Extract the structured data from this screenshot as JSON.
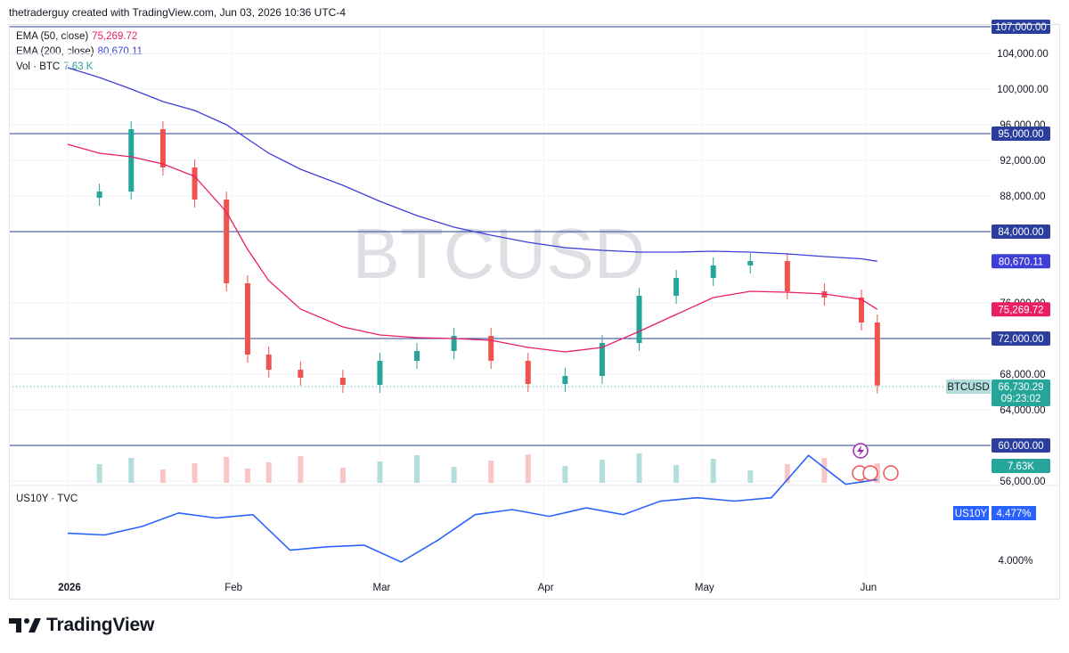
{
  "header": {
    "attribution": "thetraderguy created with TradingView.com, Jun 03, 2026 10:36 UTC-4"
  },
  "legend": {
    "ema50": {
      "label": "EMA (50, close)",
      "value": "75,269.72",
      "color": "#e91e63"
    },
    "ema200": {
      "label": "EMA (200, close)",
      "value": "80,670.11",
      "color": "#3f3fd8"
    },
    "volume": {
      "label": "Vol · BTC",
      "value": "7.63 K",
      "color": "#26a69a"
    }
  },
  "watermark": "BTCUSD",
  "colors": {
    "up": "#26a69a",
    "down": "#ef5350",
    "up_vol": "#b2dfdb",
    "down_vol": "#f7c6c5",
    "level": "#2a3f9d",
    "us10y": "#2962ff"
  },
  "price_axis": {
    "ticks": [
      "104,000.00",
      "100,000.00",
      "96,000.00",
      "92,000.00",
      "88,000.00",
      "76,000.00",
      "68,000.00",
      "64,000.00",
      "56,000.00"
    ],
    "levels": [
      "107,000.00",
      "95,000.00",
      "84,000.00",
      "72,000.00",
      "60,000.00"
    ],
    "ema200_tag": "80,670.11",
    "ema50_tag": "75,269.72",
    "symbol_tag": "BTCUSD",
    "last_price": "66,730.29",
    "countdown": "09:23:02",
    "volume_tag": "7.63K"
  },
  "time_axis": [
    "2026",
    "Feb",
    "Mar",
    "Apr",
    "May",
    "Jun"
  ],
  "lower_pane": {
    "legend": "US10Y · TVC",
    "tag_symbol": "US10Y",
    "tag_value": "4.477%",
    "tick": "4.000%"
  },
  "brand": {
    "name": "TradingView"
  },
  "chart_data": [
    {
      "type": "candlestick",
      "title": "BTCUSD",
      "x": [
        "2026-01-01",
        "2026-01-07",
        "2026-01-13",
        "2026-01-19",
        "2026-01-25",
        "2026-01-31",
        "2026-02-04",
        "2026-02-08",
        "2026-02-14",
        "2026-02-22",
        "2026-03-01",
        "2026-03-08",
        "2026-03-15",
        "2026-03-22",
        "2026-03-29",
        "2026-04-05",
        "2026-04-12",
        "2026-04-19",
        "2026-04-26",
        "2026-05-03",
        "2026-05-10",
        "2026-05-17",
        "2026-05-24",
        "2026-05-31",
        "2026-06-03"
      ],
      "close": [
        87800,
        88500,
        95500,
        91200,
        87600,
        78200,
        70200,
        68500,
        67600,
        66800,
        69500,
        70600,
        72300,
        69500,
        66900,
        67800,
        71500,
        76800,
        78800,
        80200,
        80700,
        77300,
        76600,
        73800,
        66730
      ],
      "series": [
        {
          "name": "EMA (50, close)",
          "values": [
            93800,
            92800,
            92400,
            91600,
            90200,
            86200,
            82000,
            78500,
            75300,
            73300,
            72400,
            72100,
            72000,
            71800,
            71000,
            70500,
            71000,
            72800,
            74700,
            76600,
            77300,
            77200,
            77000,
            76400,
            75270
          ]
        },
        {
          "name": "EMA (200, close)",
          "values": [
            102400,
            101300,
            100000,
            98600,
            97600,
            96000,
            94400,
            92800,
            91000,
            89200,
            87400,
            85800,
            84500,
            83600,
            82800,
            82200,
            81900,
            81700,
            81700,
            81800,
            81700,
            81500,
            81200,
            80950,
            80670
          ]
        }
      ],
      "ylim": [
        56000,
        107000
      ],
      "horizontal_levels": [
        107000,
        95000,
        84000,
        72000,
        60000
      ],
      "last_price": 66730.29,
      "volume_last": "7.63K"
    },
    {
      "type": "line",
      "title": "US10Y · TVC",
      "x": [
        "2026-01-01",
        "2026-01-08",
        "2026-01-15",
        "2026-01-22",
        "2026-01-29",
        "2026-02-05",
        "2026-02-12",
        "2026-02-19",
        "2026-02-26",
        "2026-03-05",
        "2026-03-12",
        "2026-03-19",
        "2026-03-26",
        "2026-04-02",
        "2026-04-09",
        "2026-04-16",
        "2026-04-23",
        "2026-04-30",
        "2026-05-07",
        "2026-05-14",
        "2026-05-21",
        "2026-05-28",
        "2026-06-03"
      ],
      "values": [
        4.16,
        4.15,
        4.2,
        4.28,
        4.25,
        4.27,
        4.06,
        4.08,
        4.09,
        3.99,
        4.12,
        4.27,
        4.3,
        4.26,
        4.31,
        4.27,
        4.35,
        4.37,
        4.35,
        4.37,
        4.62,
        4.45,
        4.477
      ],
      "last_value": "4.477%"
    }
  ]
}
